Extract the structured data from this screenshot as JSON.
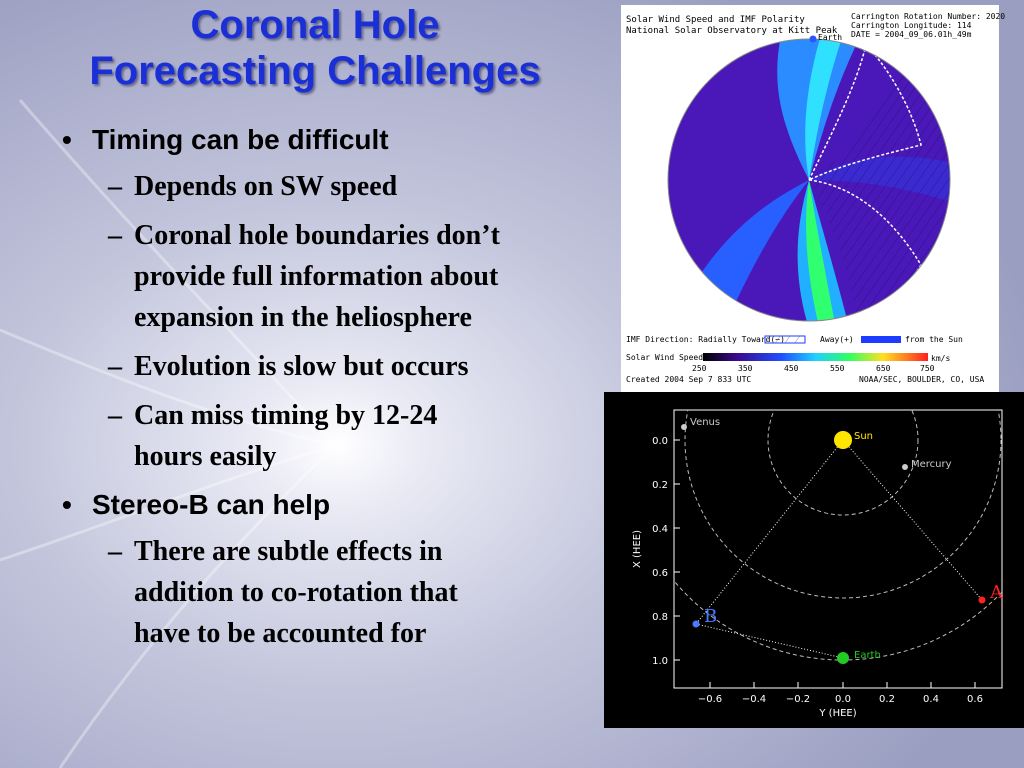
{
  "slide": {
    "title_line1": "Coronal Hole",
    "title_line2": "Forecasting Challenges",
    "bullets": [
      {
        "text": "Timing can be difficult",
        "sub": [
          [
            "Depends on SW speed"
          ],
          [
            "Coronal hole boundaries don’t",
            "provide full information about",
            "expansion in the heliosphere"
          ],
          [
            "Evolution is slow but occurs"
          ],
          [
            "Can miss timing by 12-24",
            "hours easily"
          ]
        ]
      },
      {
        "text": "Stereo-B can help",
        "sub": [
          [
            "There are subtle effects in",
            "addition to co-rotation that",
            "have to be accounted for"
          ]
        ]
      }
    ],
    "bullet_glyph": "•",
    "dash_glyph": "–"
  },
  "solar_wind_plot": {
    "title_line1": "Solar Wind Speed and IMF Polarity",
    "title_line2": "National Solar Observatory at Kitt Peak",
    "rotation": "Carrington Rotation Number: 2020",
    "longitude": "Carrington Longitude: 114",
    "date": "DATE = 2004_09_06.01h_49m",
    "earth_label": "Earth",
    "imf_label": "IMF Direction: Radially Toward(−)",
    "away_label": "Away(+)",
    "from_sun_label": "from the Sun",
    "speed_label": "Solar Wind Speed",
    "unit": "km/s",
    "ticks": [
      "250",
      "350",
      "450",
      "550",
      "650",
      "750"
    ],
    "created": "Created 2004 Sep 7 833 UTC",
    "credit": "NOAA/SEC, BOULDER, CO, USA"
  },
  "orbit_plot": {
    "xlabel": "Y (HEE)",
    "ylabel": "X (HEE)",
    "xticks": [
      "−0.6",
      "−0.4",
      "−0.2",
      "0.0",
      "0.2",
      "0.4",
      "0.6"
    ],
    "yticks": [
      "0.0",
      "0.2",
      "0.4",
      "0.6",
      "0.8",
      "1.0"
    ],
    "labels": {
      "venus": "Venus",
      "sun": "Sun",
      "mercury": "Mercury",
      "earth": "Earth",
      "a": "A",
      "b": "B"
    },
    "colors": {
      "sun": "#ffe600",
      "earth": "#22cc22",
      "stereo_a": "#ff2020",
      "stereo_b": "#4a7bff",
      "planet": "#cccccc"
    }
  },
  "colors": {
    "title": "#1b2fd6",
    "slide_bg": "#b9bcd6"
  }
}
